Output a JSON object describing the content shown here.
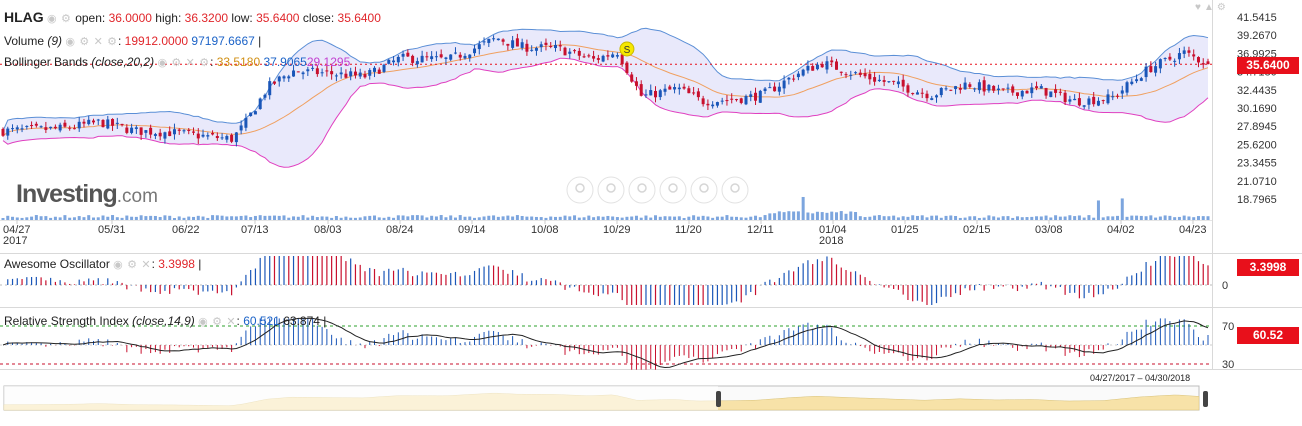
{
  "symbol": "HLAG",
  "ohlc": {
    "open_label": "open:",
    "open": "36.0000",
    "high_label": "high:",
    "high": "36.3200",
    "low_label": "low:",
    "low": "35.6400",
    "close_label": "close:",
    "close": "35.6400"
  },
  "volume_legend": {
    "name": "Volume",
    "params": "(9)",
    "value": "19912.0000",
    "ma": "97197.6667"
  },
  "bollinger_legend": {
    "name": "Bollinger Bands",
    "params": "(close,20,2)",
    "mid": "33.5180",
    "upper": "37.9065",
    "lower": "29.1295"
  },
  "ao_legend": {
    "name": "Awesome Oscillator",
    "value": "3.3998"
  },
  "rsi_legend": {
    "name": "Relative Strength Index",
    "params": "(close,14,9)",
    "value": "60.521",
    "ma": "63.874"
  },
  "current_price_tag": "35.6400",
  "ao_tag": "3.3998",
  "rsi_tag": "60.52",
  "logo": {
    "main": "Investing",
    "suffix": ".com"
  },
  "range_label": "04/27/2017 – 04/30/2018",
  "marker_letter": "S",
  "colors": {
    "up": "#1a56b8",
    "down": "#c8102e",
    "band": "#5b8fd6",
    "band_lower": "#e040c0",
    "band_fill": "#e9e9fb",
    "mid": "#f0a060",
    "volume": "#5b8fd6",
    "navigator_fill": "#f7e2a8"
  },
  "icons": [
    "eye-icon",
    "gear-icon",
    "close-icon",
    "lock-icon",
    "nav-left-icon",
    "zoom-in-icon",
    "zoom-out-icon",
    "nav-right-icon"
  ],
  "chart_data": {
    "type": "candlestick",
    "price_axis_ticks": [
      "41.5415",
      "39.2670",
      "36.9925",
      "34.7180",
      "32.4435",
      "30.1690",
      "27.8945",
      "25.6200",
      "23.3455",
      "21.0710",
      "18.7965"
    ],
    "date_ticks": [
      {
        "label": "04/27",
        "year": "2017"
      },
      {
        "label": "05/31",
        "year": ""
      },
      {
        "label": "06/22",
        "year": ""
      },
      {
        "label": "07/13",
        "year": ""
      },
      {
        "label": "08/03",
        "year": ""
      },
      {
        "label": "08/24",
        "year": ""
      },
      {
        "label": "09/14",
        "year": ""
      },
      {
        "label": "10/08",
        "year": ""
      },
      {
        "label": "10/29",
        "year": ""
      },
      {
        "label": "11/20",
        "year": ""
      },
      {
        "label": "12/11",
        "year": ""
      },
      {
        "label": "01/04",
        "year": "2018"
      },
      {
        "label": "01/25",
        "year": ""
      },
      {
        "label": "02/15",
        "year": ""
      },
      {
        "label": "03/08",
        "year": ""
      },
      {
        "label": "04/02",
        "year": ""
      },
      {
        "label": "04/23",
        "year": ""
      }
    ],
    "close_path": [
      [
        0,
        27.3
      ],
      [
        0.05,
        27.6
      ],
      [
        0.08,
        28.4
      ],
      [
        0.11,
        27.3
      ],
      [
        0.14,
        27.1
      ],
      [
        0.17,
        26.6
      ],
      [
        0.19,
        26.3
      ],
      [
        0.2,
        28.0
      ],
      [
        0.22,
        32.8
      ],
      [
        0.24,
        34.8
      ],
      [
        0.27,
        34.5
      ],
      [
        0.3,
        34.1
      ],
      [
        0.33,
        36.4
      ],
      [
        0.37,
        36.2
      ],
      [
        0.41,
        38.9
      ],
      [
        0.43,
        37.8
      ],
      [
        0.46,
        37.6
      ],
      [
        0.49,
        36.2
      ],
      [
        0.51,
        37.2
      ],
      [
        0.53,
        31.6
      ],
      [
        0.56,
        32.6
      ],
      [
        0.58,
        31.0
      ],
      [
        0.61,
        31.3
      ],
      [
        0.63,
        31.8
      ],
      [
        0.66,
        34.5
      ],
      [
        0.68,
        35.8
      ],
      [
        0.71,
        34.3
      ],
      [
        0.74,
        33.1
      ],
      [
        0.77,
        31.8
      ],
      [
        0.8,
        33.2
      ],
      [
        0.83,
        32.1
      ],
      [
        0.86,
        32.5
      ],
      [
        0.89,
        31.0
      ],
      [
        0.92,
        31.4
      ],
      [
        0.95,
        35.0
      ],
      [
        0.98,
        37.1
      ],
      [
        1.0,
        35.64
      ]
    ],
    "awesome_oscillator": {
      "current": 3.3998,
      "zero_line": 0,
      "axis_ticks": [
        "0"
      ]
    },
    "rsi": {
      "current": 60.521,
      "ma": 63.874,
      "levels": [
        70,
        30
      ],
      "axis_ticks": [
        "70",
        "30"
      ]
    }
  }
}
